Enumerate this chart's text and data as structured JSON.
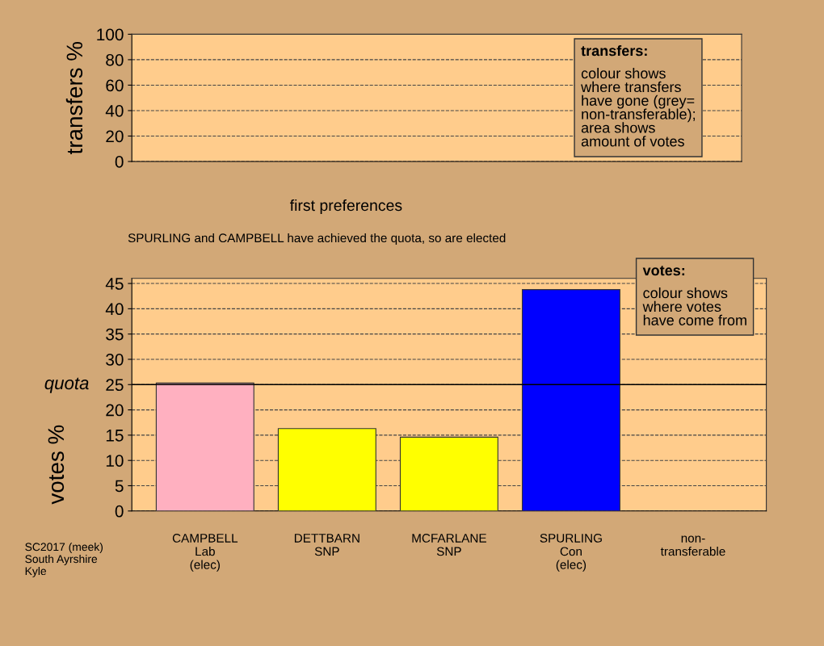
{
  "chart_data": [
    {
      "type": "bar",
      "ylabel": "transfers %",
      "categories": [
        null,
        null,
        null,
        null,
        null
      ],
      "values": [
        null,
        null,
        null,
        null,
        null
      ],
      "ylim": [
        0,
        100
      ],
      "yticks": [
        0,
        20,
        40,
        60,
        80,
        100
      ],
      "grid": "y",
      "tick_labels": "y",
      "annotations": [
        "transfers:\ncolour shows\nwhere transfers\nhave gone (grey=\nnon-transferable);\narea shows\namount of votes"
      ]
    },
    {
      "type": "bar",
      "title": "first preferences",
      "subtitle": "SPURLING and CAMPBELL have achieved the quota, so are elected",
      "ylabel": "votes %",
      "categories": [
        "CAMPBELL\nLab\n(elec)",
        "DETTBARN\nSNP",
        "MCFARLANE\nSNP",
        "SPURLING\nCon\n(elec)",
        "non-\ntransferable"
      ],
      "values": [
        25.3,
        16.3,
        14.6,
        43.8,
        null
      ],
      "colors": [
        "#ffb0c0",
        "#ffff00",
        "#ffff00",
        "#0000ff",
        "#a0a0a0"
      ],
      "ylim": [
        0,
        46
      ],
      "yticks": [
        0,
        5,
        10,
        15,
        20,
        25,
        30,
        35,
        40,
        45
      ],
      "grid": "y",
      "ref_lines": [
        {
          "axis": "y",
          "value": 25,
          "label": "quota",
          "color": "#000000",
          "line_style": "solid"
        }
      ],
      "annotations": [
        "votes:\ncolour shows\nwhere votes\nhave come from",
        "SC2017 (meek)\nSouth Ayrshire\nKyle"
      ]
    }
  ]
}
